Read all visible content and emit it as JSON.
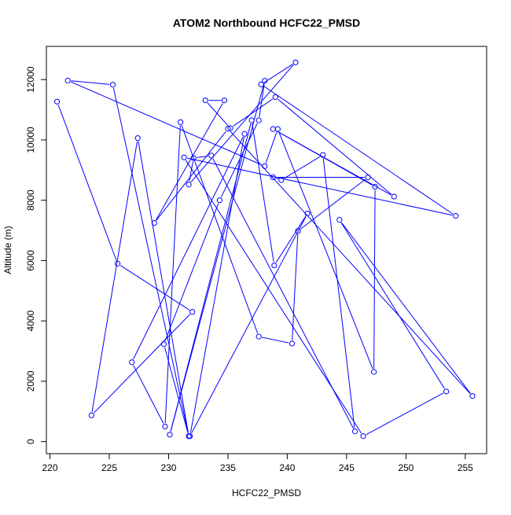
{
  "chart_data": {
    "type": "line",
    "title": "ATOM2 Northbound HCFC22_PMSD",
    "xlabel": "HCFC22_PMSD",
    "ylabel": "Altitude (m)",
    "xlim": [
      219.7,
      256.8
    ],
    "ylim": [
      -400,
      13100
    ],
    "xticks": [
      220,
      225,
      230,
      235,
      240,
      245,
      250,
      255
    ],
    "yticks": [
      0,
      2000,
      4000,
      6000,
      8000,
      10000,
      12000
    ],
    "series": [
      {
        "color": "#0000ff",
        "x": [
          220.6,
          225.7,
          232.0,
          223.5,
          227.4,
          231.7,
          229.6,
          234.3,
          237.6,
          238.1,
          230.1,
          237.0,
          238.9,
          241.7,
          231.8,
          236.4,
          226.9,
          229.7,
          231.0,
          237.6,
          240.4,
          240.9,
          246.8,
          238.8,
          239.5,
          243.0,
          245.7,
          233.6,
          232.1,
          231.7,
          240.7,
          237.8,
          254.2,
          231.3,
          246.4,
          253.4,
          244.4,
          255.6,
          235.0,
          228.8,
          234.7,
          233.1,
          235.2,
          239.0,
          249.0,
          238.8,
          247.4,
          247.3,
          239.2,
          238.1,
          221.5,
          225.3,
          231.7
        ],
        "y": [
          11270,
          5900,
          4300,
          870,
          10060,
          180,
          3230,
          8000,
          10650,
          11960,
          230,
          10650,
          5840,
          7560,
          180,
          10200,
          2630,
          500,
          10590,
          3480,
          3250,
          6980,
          8760,
          8760,
          8670,
          9500,
          340,
          9480,
          9400,
          8520,
          12570,
          11840,
          7480,
          9420,
          180,
          1660,
          7350,
          1510,
          10370,
          7250,
          11310,
          11310,
          10390,
          11420,
          8120,
          10360,
          8450,
          2310,
          10360,
          9130,
          11970,
          11830,
          180
        ]
      }
    ]
  }
}
